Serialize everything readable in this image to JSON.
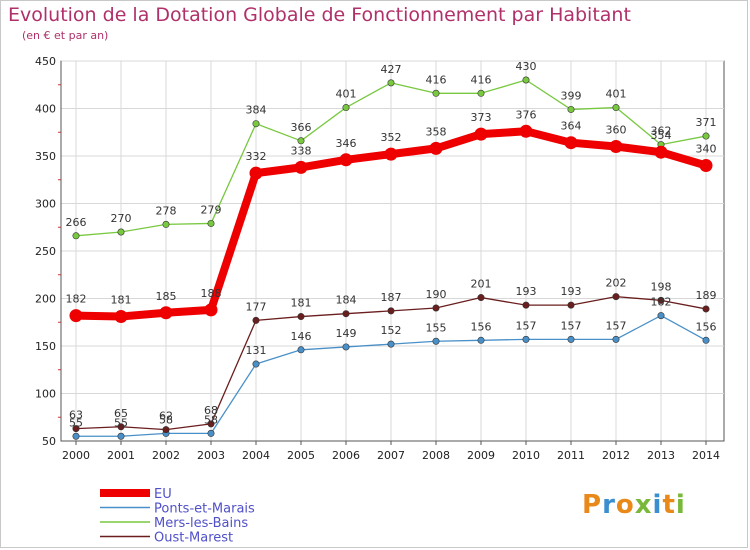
{
  "header": {
    "title": "Evolution de la Dotation Globale de Fonctionnement par Habitant",
    "subtitle": "(en € et par an)"
  },
  "logo": {
    "text": "Proxiti"
  },
  "colors": {
    "title": "#b0306a",
    "eu": "#ee0000",
    "ponts": "#4a90c8",
    "mers": "#78c840",
    "oust": "#6a1e1e"
  },
  "chart_data": {
    "type": "line",
    "title": "Evolution de la Dotation Globale de Fonctionnement par Habitant",
    "subtitle": "(en € et par an)",
    "xlabel": "",
    "ylabel": "",
    "x": [
      "2000",
      "2001",
      "2002",
      "2003",
      "2004",
      "2005",
      "2006",
      "2007",
      "2008",
      "2009",
      "2010",
      "2011",
      "2012",
      "2013",
      "2014"
    ],
    "ylim": [
      50,
      450
    ],
    "yticks": [
      50,
      100,
      150,
      200,
      250,
      300,
      350,
      400,
      450
    ],
    "grid": true,
    "legend_position": "bottom-left",
    "series": [
      {
        "name": "EU",
        "color": "#ee0000",
        "values": [
          182,
          181,
          185,
          188,
          332,
          338,
          346,
          352,
          358,
          373,
          376,
          364,
          360,
          354,
          340
        ]
      },
      {
        "name": "Ponts-et-Marais",
        "color": "#4a90c8",
        "values": [
          55,
          55,
          58,
          58,
          131,
          146,
          149,
          152,
          155,
          156,
          157,
          157,
          157,
          182,
          156
        ]
      },
      {
        "name": "Mers-les-Bains",
        "color": "#78c840",
        "values": [
          266,
          270,
          278,
          279,
          384,
          366,
          401,
          427,
          416,
          416,
          430,
          399,
          401,
          362,
          371
        ]
      },
      {
        "name": "Oust-Marest",
        "color": "#6a1e1e",
        "values": [
          63,
          65,
          62,
          68,
          177,
          181,
          184,
          187,
          190,
          201,
          193,
          193,
          202,
          198,
          189
        ]
      }
    ]
  }
}
